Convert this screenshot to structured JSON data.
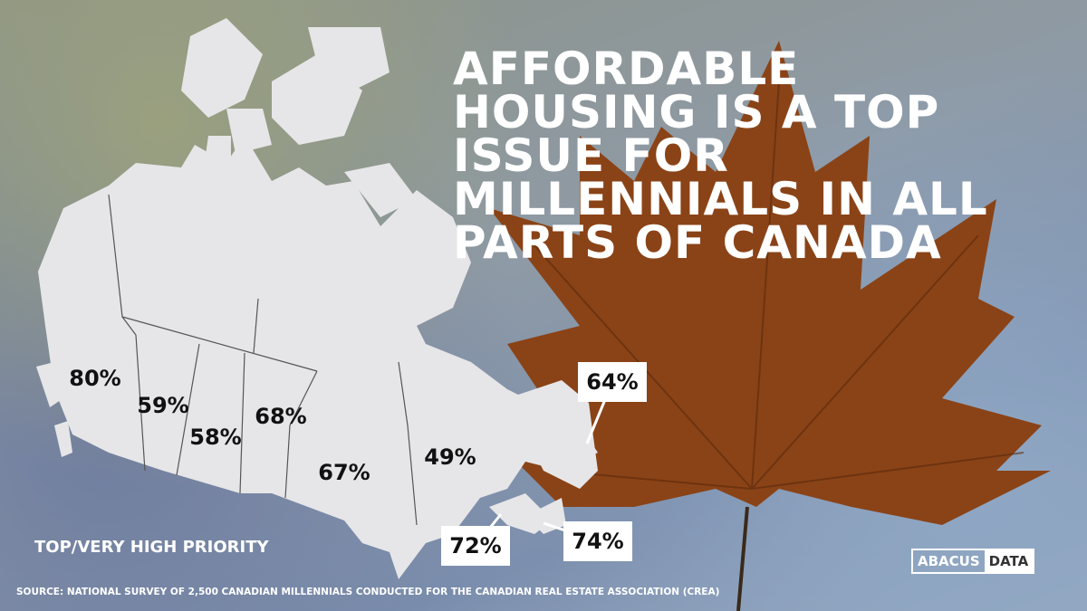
{
  "title": "AFFORDABLE HOUSING IS A TOP ISSUE FOR MILLENNIALS IN ALL PARTS OF CANADA",
  "map": {
    "region_labels": [
      "80%",
      "59%",
      "58%",
      "68%",
      "67%",
      "49%",
      "64%",
      "72%",
      "74%"
    ]
  },
  "legend": "TOP/VERY HIGH PRIORITY",
  "source": "SOURCE: NATIONAL SURVEY OF 2,500 CANADIAN MILLENNIALS CONDUCTED FOR THE CANADIAN REAL ESTATE ASSOCIATION (CREA)",
  "logo": {
    "left": "ABACUS",
    "right": "DATA"
  }
}
